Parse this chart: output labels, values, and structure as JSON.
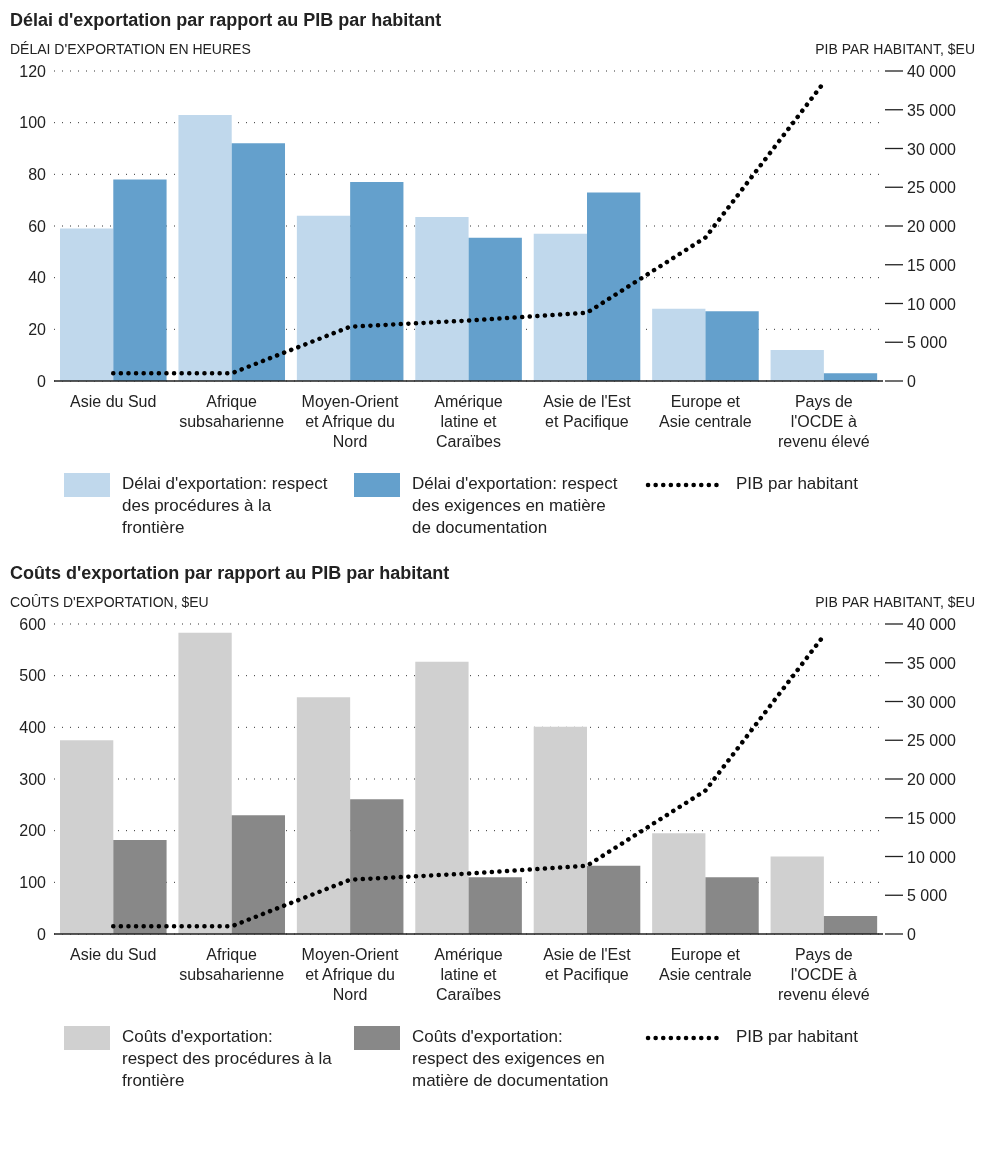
{
  "chart_data": [
    {
      "type": "bar",
      "title": "Délai d'exportation par rapport au PIB par habitant",
      "ylabel": "DÉLAI D'EXPORTATION EN HEURES",
      "y2label": "PIB PAR HABITANT, $EU",
      "categories": [
        "Asie du Sud",
        "Afrique subsaharienne",
        "Moyen-Orient et Afrique du Nord",
        "Amérique latine et Caraïbes",
        "Asie de l'Est et Pacifique",
        "Europe et Asie centrale",
        "Pays de l'OCDE à revenu élevé"
      ],
      "series": [
        {
          "name": "Délai d'exportation: respect des procédures à la frontière",
          "color": "#c0d8ec",
          "values": [
            59,
            103,
            64,
            63.5,
            57,
            28,
            12
          ]
        },
        {
          "name": "Délai d'exportation: respect des exigences en matière de documentation",
          "color": "#64a0cc",
          "values": [
            78,
            92,
            77,
            55.5,
            73,
            27,
            3
          ]
        },
        {
          "name": "PIB par habitant",
          "type": "line",
          "axis": "y2",
          "color": "#000000",
          "line_style": "dotted",
          "marker": "none",
          "values": [
            1000,
            1000,
            7000,
            7800,
            8800,
            18500,
            38500
          ]
        }
      ],
      "ylim": [
        0,
        120
      ],
      "yticks": [
        0,
        20,
        40,
        60,
        80,
        100,
        120
      ],
      "y2lim": [
        0,
        40000
      ],
      "y2ticks": [
        0,
        {
          "value": 5000,
          "label": "5 000"
        },
        {
          "value": 10000,
          "label": "10 000"
        },
        {
          "value": 15000,
          "label": "15 000"
        },
        {
          "value": 20000,
          "label": "20 000"
        },
        {
          "value": 25000,
          "label": "25 000"
        },
        {
          "value": 30000,
          "label": "30 000"
        },
        {
          "value": 35000,
          "label": "35 000"
        },
        {
          "value": 40000,
          "label": "40 000"
        }
      ],
      "grid": "y",
      "legend": "bottom"
    },
    {
      "type": "bar",
      "title": "Coûts d'exportation par rapport au PIB par habitant",
      "ylabel": "COÛTS D'EXPORTATION, $EU",
      "y2label": "PIB PAR HABITANT, $EU",
      "categories": [
        "Asie du Sud",
        "Afrique subsaharienne",
        "Moyen-Orient et Afrique du Nord",
        "Amérique latine et Caraïbes",
        "Asie de l'Est et Pacifique",
        "Europe et Asie centrale",
        "Pays de l'OCDE à revenu élevé"
      ],
      "series": [
        {
          "name": "Coûts d'exportation: respect des procédures à la frontière",
          "color": "#d0d0d0",
          "values": [
            375,
            583,
            458,
            527,
            401,
            195,
            150
          ]
        },
        {
          "name": "Coûts d'exportation: respect des exigences en matière de documentation",
          "color": "#888888",
          "values": [
            182,
            230,
            261,
            110,
            132,
            110,
            35
          ]
        },
        {
          "name": "PIB par habitant",
          "type": "line",
          "axis": "y2",
          "color": "#000000",
          "line_style": "dotted",
          "marker": "none",
          "values": [
            1000,
            1000,
            7000,
            7800,
            8800,
            18500,
            38500
          ]
        }
      ],
      "ylim": [
        0,
        600
      ],
      "yticks": [
        0,
        100,
        200,
        300,
        400,
        500,
        600
      ],
      "y2lim": [
        0,
        40000
      ],
      "y2ticks": [
        0,
        {
          "value": 5000,
          "label": "5 000"
        },
        {
          "value": 10000,
          "label": "10 000"
        },
        {
          "value": 15000,
          "label": "15 000"
        },
        {
          "value": 20000,
          "label": "20 000"
        },
        {
          "value": 25000,
          "label": "25 000"
        },
        {
          "value": 30000,
          "label": "30 000"
        },
        {
          "value": 35000,
          "label": "35 000"
        },
        {
          "value": 40000,
          "label": "40 000"
        }
      ],
      "grid": "y",
      "legend": "bottom"
    }
  ]
}
